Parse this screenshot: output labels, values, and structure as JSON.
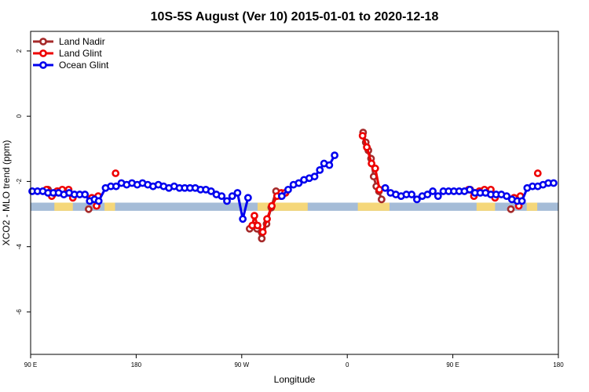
{
  "chart_data": {
    "type": "line",
    "title": "10S-5S August (Ver 10)   2015-01-01 to 2020-12-18",
    "xlabel": "Longitude",
    "ylabel": "XCO2 - MLO trend (ppm)",
    "xlim": [
      0,
      100
    ],
    "ylim": [
      -7.3,
      2.6
    ],
    "grid": false,
    "legend_position": "top-left",
    "x_ticks": [
      {
        "value": 0,
        "label": "90 E"
      },
      {
        "value": 20,
        "label": "180"
      },
      {
        "value": 40,
        "label": "90 W"
      },
      {
        "value": 60,
        "label": "0"
      },
      {
        "value": 80,
        "label": "90 E"
      },
      {
        "value": 100,
        "label": "180"
      }
    ],
    "y_ticks": [
      {
        "value": 2,
        "label": "2"
      },
      {
        "value": 0,
        "label": "0"
      },
      {
        "value": -2,
        "label": "-2"
      },
      {
        "value": -4,
        "label": "-4"
      },
      {
        "value": -6,
        "label": "-6"
      }
    ],
    "background_band": {
      "y": [
        -2.9,
        -2.65
      ],
      "ocean_color": "#a5bcd7",
      "land_color": "#f5d77a",
      "land_segments": [
        [
          4.5,
          8
        ],
        [
          14,
          16
        ],
        [
          43,
          52.5
        ],
        [
          62,
          68
        ],
        [
          84.5,
          88
        ],
        [
          94,
          96
        ]
      ]
    },
    "series": [
      {
        "name": "Land Nadir",
        "color": "#a52a2a",
        "segments": [
          [
            [
              3.3,
              -2.25
            ],
            [
              4.2,
              -2.4
            ],
            [
              5.1,
              -2.3
            ],
            [
              6.0,
              -2.3
            ],
            [
              6.9,
              -2.35
            ]
          ],
          [
            [
              11.0,
              -2.85
            ]
          ],
          [
            [
              41.5,
              -3.45
            ],
            [
              42.3,
              -3.35
            ],
            [
              42.9,
              -3.45
            ],
            [
              43.8,
              -3.75
            ],
            [
              44.7,
              -3.3
            ],
            [
              45.6,
              -2.8
            ],
            [
              46.5,
              -2.3
            ],
            [
              47.4,
              -2.45
            ],
            [
              48.3,
              -2.35
            ]
          ],
          [
            [
              63.0,
              -0.5
            ],
            [
              63.5,
              -0.8
            ],
            [
              64.0,
              -1.05
            ],
            [
              64.5,
              -1.3
            ],
            [
              65.0,
              -1.85
            ],
            [
              65.5,
              -2.15
            ],
            [
              66.0,
              -2.3
            ],
            [
              66.5,
              -2.55
            ]
          ],
          [
            [
              83.3,
              -2.25
            ],
            [
              84.2,
              -2.35
            ],
            [
              85.1,
              -2.3
            ],
            [
              86.0,
              -2.3
            ],
            [
              86.9,
              -2.35
            ]
          ],
          [
            [
              91.0,
              -2.85
            ]
          ]
        ]
      },
      {
        "name": "Land Glint",
        "color": "#ee0000",
        "segments": [
          [
            [
              3.0,
              -2.25
            ],
            [
              4.0,
              -2.45
            ],
            [
              5.0,
              -2.3
            ],
            [
              6.0,
              -2.25
            ],
            [
              7.2,
              -2.25
            ],
            [
              8.0,
              -2.5
            ]
          ],
          [
            [
              11.6,
              -2.5
            ],
            [
              12.5,
              -2.75
            ],
            [
              12.8,
              -2.45
            ]
          ],
          [
            [
              16.1,
              -1.75
            ]
          ],
          [
            [
              42.0,
              -3.35
            ],
            [
              42.4,
              -3.05
            ],
            [
              43.0,
              -3.35
            ],
            [
              44.0,
              -3.55
            ],
            [
              44.8,
              -3.15
            ],
            [
              45.7,
              -2.75
            ],
            [
              46.7,
              -2.45
            ],
            [
              47.5,
              -2.35
            ],
            [
              48.2,
              -2.35
            ]
          ],
          [
            [
              62.9,
              -0.6
            ],
            [
              63.7,
              -0.95
            ],
            [
              64.6,
              -1.45
            ],
            [
              65.3,
              -1.6
            ],
            [
              66.1,
              -2.25
            ]
          ],
          [
            [
              83.0,
              -2.25
            ],
            [
              84.0,
              -2.45
            ],
            [
              85.0,
              -2.3
            ],
            [
              86.0,
              -2.25
            ],
            [
              87.2,
              -2.25
            ],
            [
              88.0,
              -2.5
            ]
          ],
          [
            [
              91.6,
              -2.5
            ],
            [
              92.5,
              -2.75
            ],
            [
              92.8,
              -2.45
            ]
          ],
          [
            [
              96.1,
              -1.75
            ]
          ]
        ]
      },
      {
        "name": "Ocean Glint",
        "color": "#0000ee",
        "segments": [
          [
            [
              0.3,
              -2.3
            ],
            [
              1.3,
              -2.3
            ],
            [
              2.3,
              -2.3
            ],
            [
              3.3,
              -2.35
            ],
            [
              4.3,
              -2.35
            ],
            [
              5.3,
              -2.35
            ],
            [
              6.3,
              -2.4
            ],
            [
              7.3,
              -2.35
            ],
            [
              8.3,
              -2.4
            ],
            [
              9.3,
              -2.4
            ],
            [
              10.3,
              -2.4
            ],
            [
              11.2,
              -2.6
            ],
            [
              12.1,
              -2.55
            ],
            [
              12.9,
              -2.6
            ],
            [
              14.2,
              -2.2
            ],
            [
              15.2,
              -2.15
            ],
            [
              16.2,
              -2.15
            ],
            [
              17.2,
              -2.05
            ],
            [
              18.2,
              -2.1
            ],
            [
              19.2,
              -2.05
            ],
            [
              20.2,
              -2.1
            ],
            [
              21.2,
              -2.05
            ],
            [
              22.2,
              -2.1
            ],
            [
              23.2,
              -2.15
            ],
            [
              24.2,
              -2.1
            ],
            [
              25.2,
              -2.15
            ],
            [
              26.2,
              -2.2
            ],
            [
              27.2,
              -2.15
            ],
            [
              28.2,
              -2.2
            ],
            [
              29.2,
              -2.2
            ],
            [
              30.2,
              -2.2
            ],
            [
              31.2,
              -2.2
            ],
            [
              32.2,
              -2.25
            ],
            [
              33.2,
              -2.25
            ],
            [
              34.2,
              -2.3
            ],
            [
              35.2,
              -2.4
            ],
            [
              36.2,
              -2.45
            ],
            [
              37.2,
              -2.6
            ],
            [
              38.2,
              -2.45
            ],
            [
              39.2,
              -2.35
            ],
            [
              40.2,
              -3.15
            ],
            [
              41.2,
              -2.5
            ]
          ],
          [
            [
              47.6,
              -2.45
            ],
            [
              48.8,
              -2.25
            ],
            [
              49.8,
              -2.1
            ],
            [
              50.8,
              -2.05
            ],
            [
              51.8,
              -1.95
            ],
            [
              52.8,
              -1.9
            ],
            [
              53.8,
              -1.85
            ],
            [
              54.8,
              -1.65
            ],
            [
              55.6,
              -1.45
            ],
            [
              56.6,
              -1.5
            ],
            [
              57.6,
              -1.2
            ]
          ],
          [
            [
              67.2,
              -2.2
            ],
            [
              68.2,
              -2.35
            ],
            [
              69.2,
              -2.4
            ],
            [
              70.2,
              -2.45
            ],
            [
              71.2,
              -2.4
            ],
            [
              72.2,
              -2.4
            ],
            [
              73.2,
              -2.55
            ],
            [
              74.2,
              -2.45
            ],
            [
              75.2,
              -2.4
            ],
            [
              76.2,
              -2.3
            ],
            [
              77.2,
              -2.45
            ],
            [
              78.2,
              -2.3
            ],
            [
              79.2,
              -2.3
            ],
            [
              80.2,
              -2.3
            ],
            [
              81.2,
              -2.3
            ],
            [
              82.2,
              -2.3
            ],
            [
              83.2,
              -2.25
            ],
            [
              84.2,
              -2.35
            ],
            [
              85.2,
              -2.35
            ],
            [
              86.2,
              -2.35
            ],
            [
              87.2,
              -2.4
            ],
            [
              88.2,
              -2.4
            ],
            [
              89.2,
              -2.4
            ],
            [
              90.2,
              -2.45
            ],
            [
              91.2,
              -2.55
            ],
            [
              92.2,
              -2.6
            ],
            [
              93.1,
              -2.6
            ],
            [
              94.1,
              -2.2
            ],
            [
              95.1,
              -2.15
            ],
            [
              96.1,
              -2.15
            ],
            [
              97.1,
              -2.1
            ],
            [
              98.1,
              -2.05
            ],
            [
              99.1,
              -2.05
            ]
          ]
        ]
      }
    ]
  }
}
